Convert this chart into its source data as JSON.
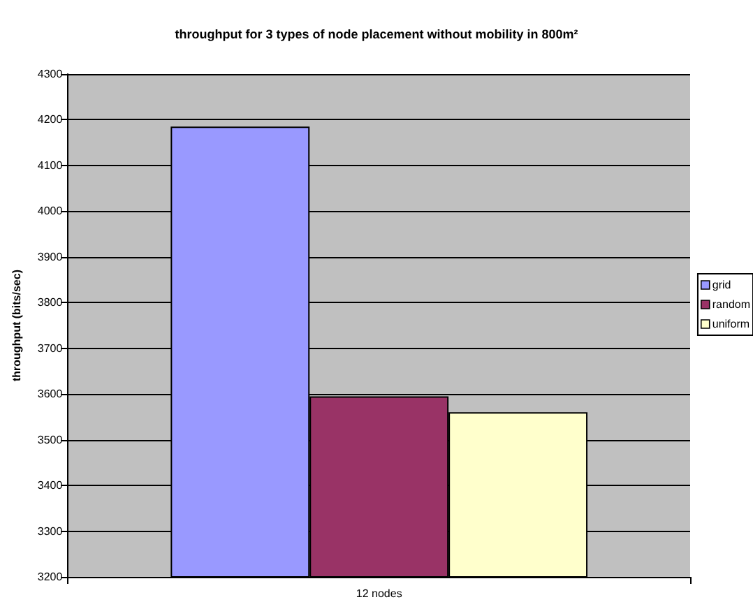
{
  "chart_data": {
    "type": "bar",
    "title": "throughput for 3 types of node placement without mobility in 800m²",
    "ylabel": "throughput (bits/sec)",
    "categories": [
      "12 nodes"
    ],
    "series": [
      {
        "name": "grid",
        "color": "#9999ff",
        "values": [
          4185
        ]
      },
      {
        "name": "random",
        "color": "#993366",
        "values": [
          3595
        ]
      },
      {
        "name": "uniform",
        "color": "#ffffcc",
        "values": [
          3560
        ]
      }
    ],
    "ylim": [
      3200,
      4300
    ],
    "yticks": [
      3200,
      3300,
      3400,
      3500,
      3600,
      3700,
      3800,
      3900,
      4000,
      4100,
      4200,
      4300
    ],
    "grid": "y",
    "legend": "right"
  }
}
